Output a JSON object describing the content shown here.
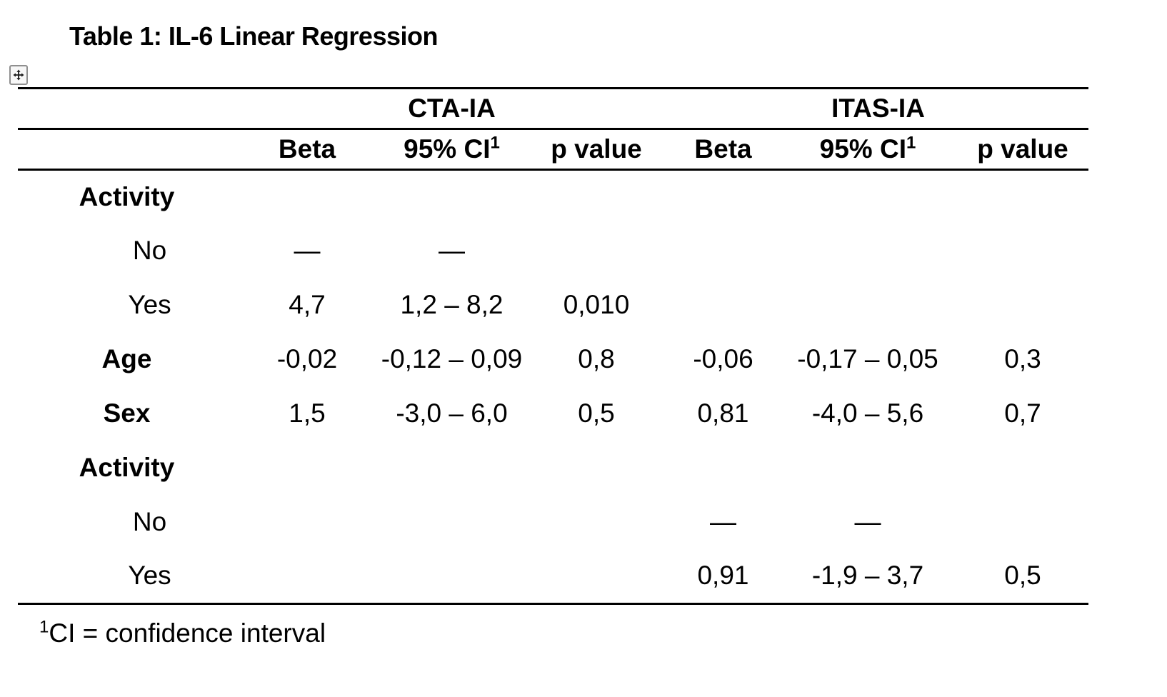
{
  "title": "Table 1: IL-6 Linear Regression",
  "table": {
    "group_headers": [
      {
        "label": "CTA-IA"
      },
      {
        "label": "ITAS-IA"
      }
    ],
    "column_headers": [
      {
        "label": "Beta",
        "sup": ""
      },
      {
        "label": "95% CI",
        "sup": "1"
      },
      {
        "label": "p value",
        "sup": ""
      },
      {
        "label": "Beta",
        "sup": ""
      },
      {
        "label": "95% CI",
        "sup": "1"
      },
      {
        "label": "p value",
        "sup": ""
      }
    ],
    "rows": [
      {
        "label": "Activity",
        "bold": true,
        "indent": false,
        "cells": [
          "",
          "",
          "",
          "",
          "",
          ""
        ]
      },
      {
        "label": "No",
        "bold": false,
        "indent": true,
        "cells": [
          "—",
          "—",
          "",
          "",
          "",
          ""
        ]
      },
      {
        "label": "Yes",
        "bold": false,
        "indent": true,
        "cells": [
          "4,7",
          "1,2 – 8,2",
          "0,010",
          "",
          "",
          ""
        ]
      },
      {
        "label": "Age",
        "bold": true,
        "indent": false,
        "cells": [
          "-0,02",
          "-0,12 – 0,09",
          "0,8",
          "-0,06",
          "-0,17 – 0,05",
          "0,3"
        ]
      },
      {
        "label": "Sex",
        "bold": true,
        "indent": false,
        "cells": [
          "1,5",
          "-3,0 – 6,0",
          "0,5",
          "0,81",
          "-4,0 – 5,6",
          "0,7"
        ]
      },
      {
        "label": "Activity",
        "bold": true,
        "indent": false,
        "cells": [
          "",
          "",
          "",
          "",
          "",
          ""
        ]
      },
      {
        "label": "No",
        "bold": false,
        "indent": true,
        "cells": [
          "",
          "",
          "",
          "—",
          "—",
          ""
        ]
      },
      {
        "label": "Yes",
        "bold": false,
        "indent": true,
        "cells": [
          "",
          "",
          "",
          "0,91",
          "-1,9 – 3,7",
          "0,5"
        ]
      }
    ]
  },
  "footnote": {
    "sup": "1",
    "text": "CI = confidence interval"
  },
  "icons": {
    "move_handle": "four-direction-move-arrows"
  },
  "colors": {
    "text": "#000000",
    "rule": "#000000",
    "background": "#ffffff",
    "handle_border": "#8f8f8f",
    "handle_background": "#f7f7f7"
  }
}
